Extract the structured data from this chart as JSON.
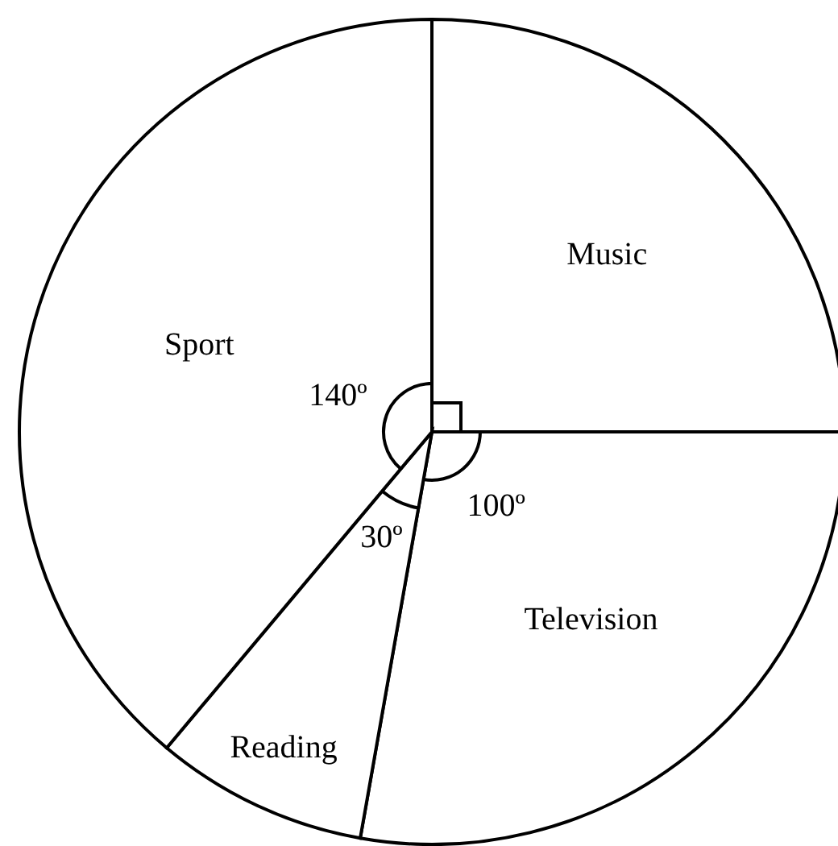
{
  "chart_data": {
    "type": "pie",
    "categories": [
      "Music",
      "Television",
      "Reading",
      "Sport"
    ],
    "values": [
      90,
      100,
      30,
      140
    ],
    "colors": [
      "#ffffff",
      "#ffffff",
      "#ffffff",
      "#ffffff"
    ],
    "value_labels": [
      null,
      "100º",
      "30º",
      "140º"
    ]
  }
}
